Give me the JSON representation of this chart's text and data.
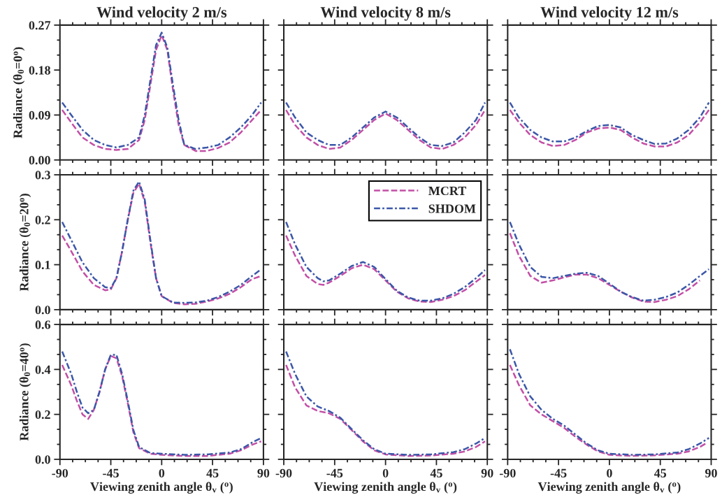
{
  "chart_data": [
    {
      "type": "line",
      "title": "Wind velocity 2 m/s",
      "ylabel": "Radiance (θ$_{0}$=0$^{o}$)",
      "xlim": [
        -90,
        90
      ],
      "xticks": [
        -90,
        -45,
        0,
        45,
        90
      ],
      "ylim": [
        0,
        0.27
      ],
      "yticks": [
        {
          "value": 0,
          "label": "0.00"
        },
        {
          "value": 0.09,
          "label": "0.09"
        },
        {
          "value": 0.18,
          "label": "0.18"
        },
        {
          "value": 0.27,
          "label": "0.27"
        }
      ],
      "tick_labels": "y",
      "series": [
        {
          "color": "#c24fa6",
          "line_style": "dashed",
          "x": [
            -88,
            -80,
            -70,
            -60,
            -50,
            -40,
            -30,
            -20,
            -15,
            -10,
            -5,
            0,
            5,
            10,
            15,
            20,
            30,
            40,
            50,
            60,
            70,
            80,
            88
          ],
          "values": [
            0.1,
            0.075,
            0.045,
            0.03,
            0.022,
            0.02,
            0.022,
            0.04,
            0.08,
            0.15,
            0.22,
            0.25,
            0.22,
            0.14,
            0.07,
            0.03,
            0.018,
            0.018,
            0.024,
            0.035,
            0.055,
            0.08,
            0.1
          ]
        },
        {
          "color": "#3b57a8",
          "line_style": "dashdot",
          "x": [
            -88,
            -80,
            -70,
            -60,
            -50,
            -40,
            -30,
            -20,
            -15,
            -10,
            -5,
            0,
            5,
            10,
            15,
            20,
            30,
            40,
            50,
            60,
            70,
            80,
            88
          ],
          "values": [
            0.115,
            0.09,
            0.06,
            0.04,
            0.03,
            0.025,
            0.03,
            0.045,
            0.09,
            0.16,
            0.23,
            0.255,
            0.225,
            0.15,
            0.08,
            0.03,
            0.022,
            0.025,
            0.03,
            0.045,
            0.065,
            0.09,
            0.115
          ]
        }
      ]
    },
    {
      "type": "line",
      "title": "Wind velocity 8 m/s",
      "xlim": [
        -90,
        90
      ],
      "xticks": [
        -90,
        -45,
        0,
        45,
        90
      ],
      "ylim": [
        0,
        0.27
      ],
      "yticks": [
        {
          "value": 0,
          "label": null
        },
        {
          "value": 0.09,
          "label": null
        },
        {
          "value": 0.18,
          "label": null
        },
        {
          "value": 0.27,
          "label": null
        }
      ],
      "tick_labels": false,
      "series": [
        {
          "color": "#c24fa6",
          "line_style": "dashed",
          "x": [
            -88,
            -80,
            -70,
            -60,
            -50,
            -40,
            -30,
            -20,
            -10,
            0,
            10,
            20,
            30,
            40,
            50,
            60,
            70,
            80,
            88
          ],
          "values": [
            0.1,
            0.07,
            0.045,
            0.03,
            0.022,
            0.025,
            0.04,
            0.06,
            0.08,
            0.093,
            0.08,
            0.06,
            0.04,
            0.025,
            0.022,
            0.03,
            0.045,
            0.07,
            0.1
          ]
        },
        {
          "color": "#3b57a8",
          "line_style": "dashdot",
          "x": [
            -88,
            -80,
            -70,
            -60,
            -50,
            -40,
            -30,
            -20,
            -10,
            0,
            10,
            20,
            30,
            40,
            50,
            60,
            70,
            80,
            88
          ],
          "values": [
            0.115,
            0.085,
            0.055,
            0.04,
            0.03,
            0.03,
            0.045,
            0.065,
            0.085,
            0.097,
            0.085,
            0.065,
            0.045,
            0.03,
            0.028,
            0.035,
            0.055,
            0.08,
            0.115
          ]
        }
      ]
    },
    {
      "type": "line",
      "title": "Wind velocity 12 m/s",
      "xlim": [
        -90,
        90
      ],
      "xticks": [
        -90,
        -45,
        0,
        45,
        90
      ],
      "ylim": [
        0,
        0.27
      ],
      "yticks": [
        {
          "value": 0,
          "label": null
        },
        {
          "value": 0.09,
          "label": null
        },
        {
          "value": 0.18,
          "label": null
        },
        {
          "value": 0.27,
          "label": null
        }
      ],
      "tick_labels": false,
      "series": [
        {
          "color": "#c24fa6",
          "line_style": "dashed",
          "x": [
            -88,
            -80,
            -70,
            -60,
            -50,
            -40,
            -30,
            -20,
            -10,
            0,
            10,
            20,
            30,
            40,
            50,
            60,
            70,
            80,
            88
          ],
          "values": [
            0.1,
            0.075,
            0.05,
            0.035,
            0.028,
            0.03,
            0.04,
            0.055,
            0.063,
            0.065,
            0.06,
            0.045,
            0.033,
            0.027,
            0.027,
            0.035,
            0.05,
            0.075,
            0.1
          ]
        },
        {
          "color": "#3b57a8",
          "line_style": "dashdot",
          "x": [
            -88,
            -80,
            -70,
            -60,
            -50,
            -40,
            -30,
            -20,
            -10,
            0,
            10,
            20,
            30,
            40,
            50,
            60,
            70,
            80,
            88
          ],
          "values": [
            0.115,
            0.085,
            0.06,
            0.045,
            0.037,
            0.037,
            0.045,
            0.058,
            0.068,
            0.07,
            0.065,
            0.05,
            0.04,
            0.032,
            0.033,
            0.043,
            0.06,
            0.085,
            0.115
          ]
        }
      ]
    },
    {
      "type": "line",
      "ylabel": "Radiance (θ$_{0}$=20$^{o}$)",
      "xlim": [
        -90,
        90
      ],
      "xticks": [
        -90,
        -45,
        0,
        45,
        90
      ],
      "ylim": [
        0,
        0.3
      ],
      "yticks": [
        {
          "value": 0,
          "label": "0.0"
        },
        {
          "value": 0.1,
          "label": "0.1"
        },
        {
          "value": 0.2,
          "label": "0.2"
        },
        {
          "value": 0.3,
          "label": "0.3"
        }
      ],
      "tick_labels": "y",
      "series": [
        {
          "color": "#c24fa6",
          "line_style": "dashed",
          "x": [
            -88,
            -80,
            -70,
            -60,
            -50,
            -45,
            -40,
            -35,
            -30,
            -25,
            -20,
            -15,
            -10,
            -5,
            0,
            10,
            20,
            30,
            40,
            50,
            60,
            70,
            80,
            88
          ],
          "values": [
            0.165,
            0.13,
            0.085,
            0.055,
            0.043,
            0.045,
            0.07,
            0.13,
            0.2,
            0.26,
            0.28,
            0.24,
            0.15,
            0.07,
            0.03,
            0.015,
            0.012,
            0.013,
            0.018,
            0.025,
            0.035,
            0.05,
            0.068,
            0.075
          ]
        },
        {
          "color": "#3b57a8",
          "line_style": "dashdot",
          "x": [
            -88,
            -80,
            -70,
            -60,
            -50,
            -45,
            -40,
            -35,
            -30,
            -25,
            -20,
            -15,
            -10,
            -5,
            0,
            10,
            20,
            30,
            40,
            50,
            60,
            70,
            80,
            88
          ],
          "values": [
            0.195,
            0.155,
            0.105,
            0.07,
            0.05,
            0.048,
            0.07,
            0.13,
            0.2,
            0.265,
            0.285,
            0.245,
            0.155,
            0.07,
            0.03,
            0.016,
            0.015,
            0.016,
            0.02,
            0.028,
            0.04,
            0.055,
            0.075,
            0.09
          ]
        }
      ]
    },
    {
      "type": "line",
      "xlim": [
        -90,
        90
      ],
      "xticks": [
        -90,
        -45,
        0,
        45,
        90
      ],
      "ylim": [
        0,
        0.3
      ],
      "yticks": [
        {
          "value": 0,
          "label": null
        },
        {
          "value": 0.1,
          "label": null
        },
        {
          "value": 0.2,
          "label": null
        },
        {
          "value": 0.3,
          "label": null
        }
      ],
      "tick_labels": false,
      "legend": "top right",
      "series": [
        {
          "name": "MCRT",
          "color": "#c24fa6",
          "line_style": "dashed",
          "x": [
            -88,
            -80,
            -70,
            -60,
            -55,
            -50,
            -40,
            -30,
            -20,
            -10,
            0,
            10,
            20,
            30,
            40,
            50,
            60,
            70,
            80,
            88
          ],
          "values": [
            0.165,
            0.12,
            0.075,
            0.057,
            0.055,
            0.06,
            0.075,
            0.092,
            0.1,
            0.09,
            0.065,
            0.04,
            0.025,
            0.018,
            0.017,
            0.022,
            0.03,
            0.043,
            0.062,
            0.077
          ]
        },
        {
          "name": "SHDOM",
          "color": "#3b57a8",
          "line_style": "dashdot",
          "x": [
            -88,
            -80,
            -70,
            -60,
            -55,
            -50,
            -40,
            -30,
            -20,
            -10,
            0,
            10,
            20,
            30,
            40,
            50,
            60,
            70,
            80,
            88
          ],
          "values": [
            0.195,
            0.145,
            0.095,
            0.07,
            0.063,
            0.065,
            0.08,
            0.097,
            0.106,
            0.095,
            0.068,
            0.042,
            0.027,
            0.02,
            0.02,
            0.025,
            0.035,
            0.05,
            0.07,
            0.088
          ]
        }
      ]
    },
    {
      "type": "line",
      "xlim": [
        -90,
        90
      ],
      "xticks": [
        -90,
        -45,
        0,
        45,
        90
      ],
      "ylim": [
        0,
        0.3
      ],
      "yticks": [
        {
          "value": 0,
          "label": null
        },
        {
          "value": 0.1,
          "label": null
        },
        {
          "value": 0.2,
          "label": null
        },
        {
          "value": 0.3,
          "label": null
        }
      ],
      "tick_labels": false,
      "series": [
        {
          "color": "#c24fa6",
          "line_style": "dashed",
          "x": [
            -88,
            -80,
            -70,
            -60,
            -50,
            -40,
            -30,
            -20,
            -10,
            0,
            10,
            20,
            30,
            40,
            50,
            60,
            70,
            80
          ],
          "values": [
            0.17,
            0.12,
            0.075,
            0.06,
            0.065,
            0.072,
            0.078,
            0.078,
            0.07,
            0.055,
            0.04,
            0.027,
            0.018,
            0.017,
            0.022,
            0.03,
            0.045,
            0.065
          ]
        },
        {
          "color": "#3b57a8",
          "line_style": "dashdot",
          "x": [
            -88,
            -80,
            -70,
            -60,
            -50,
            -40,
            -30,
            -20,
            -10,
            0,
            10,
            20,
            30,
            40,
            50,
            60,
            70,
            80,
            88
          ],
          "values": [
            0.195,
            0.145,
            0.095,
            0.073,
            0.07,
            0.075,
            0.08,
            0.082,
            0.075,
            0.058,
            0.04,
            0.028,
            0.02,
            0.022,
            0.028,
            0.038,
            0.055,
            0.075,
            0.09
          ]
        }
      ]
    },
    {
      "type": "line",
      "ylabel": "Radiance (θ$_{0}$=40$^{o}$)",
      "xlabel": "Viewing zenith angle θ$_{v}$ ($^{o}$)",
      "xlim": [
        -90,
        90
      ],
      "xticks": [
        -90,
        -45,
        0,
        45,
        90
      ],
      "ylim": [
        0,
        0.6
      ],
      "yticks": [
        {
          "value": 0,
          "label": "0.0"
        },
        {
          "value": 0.2,
          "label": "0.2"
        },
        {
          "value": 0.4,
          "label": "0.4"
        },
        {
          "value": 0.6,
          "label": "0.6"
        }
      ],
      "series": [
        {
          "color": "#c24fa6",
          "line_style": "dashed",
          "x": [
            -88,
            -80,
            -75,
            -70,
            -65,
            -60,
            -55,
            -50,
            -45,
            -40,
            -35,
            -30,
            -25,
            -20,
            -10,
            0,
            20,
            40,
            60,
            70,
            80,
            88
          ],
          "values": [
            0.42,
            0.33,
            0.26,
            0.2,
            0.18,
            0.22,
            0.3,
            0.4,
            0.46,
            0.45,
            0.37,
            0.25,
            0.12,
            0.05,
            0.025,
            0.02,
            0.015,
            0.015,
            0.025,
            0.04,
            0.065,
            0.08
          ]
        },
        {
          "color": "#3b57a8",
          "line_style": "dashdot",
          "x": [
            -88,
            -80,
            -75,
            -70,
            -65,
            -60,
            -55,
            -50,
            -45,
            -40,
            -35,
            -30,
            -25,
            -20,
            -10,
            0,
            20,
            40,
            60,
            70,
            80,
            88
          ],
          "values": [
            0.48,
            0.38,
            0.3,
            0.23,
            0.205,
            0.22,
            0.3,
            0.4,
            0.465,
            0.465,
            0.38,
            0.26,
            0.13,
            0.055,
            0.028,
            0.025,
            0.02,
            0.022,
            0.03,
            0.045,
            0.075,
            0.095
          ]
        }
      ]
    },
    {
      "type": "line",
      "xlabel": "Viewing zenith angle θ$_{v}$ ($^{o}$)",
      "xlim": [
        -90,
        90
      ],
      "xticks": [
        -90,
        -45,
        0,
        45,
        90
      ],
      "ylim": [
        0,
        0.6
      ],
      "yticks": [
        {
          "value": 0,
          "label": null
        },
        {
          "value": 0.2,
          "label": null
        },
        {
          "value": 0.4,
          "label": null
        },
        {
          "value": 0.6,
          "label": null
        }
      ],
      "tick_labels": "x",
      "series": [
        {
          "color": "#c24fa6",
          "line_style": "dashed",
          "x": [
            -88,
            -80,
            -70,
            -60,
            -50,
            -40,
            -30,
            -20,
            -10,
            0,
            20,
            40,
            60,
            70,
            80,
            88
          ],
          "values": [
            0.42,
            0.32,
            0.24,
            0.215,
            0.205,
            0.18,
            0.13,
            0.08,
            0.04,
            0.022,
            0.015,
            0.017,
            0.025,
            0.035,
            0.055,
            0.08
          ]
        },
        {
          "color": "#3b57a8",
          "line_style": "dashdot",
          "x": [
            -88,
            -80,
            -70,
            -60,
            -50,
            -40,
            -30,
            -20,
            -10,
            0,
            20,
            40,
            60,
            70,
            80,
            88
          ],
          "values": [
            0.48,
            0.38,
            0.28,
            0.235,
            0.215,
            0.185,
            0.135,
            0.085,
            0.045,
            0.025,
            0.02,
            0.022,
            0.032,
            0.045,
            0.07,
            0.095
          ]
        }
      ]
    },
    {
      "type": "line",
      "xlabel": "Viewing zenith angle θ$_{v}$ ($^{o}$)",
      "xlim": [
        -90,
        90
      ],
      "xticks": [
        -90,
        -45,
        0,
        45,
        90
      ],
      "ylim": [
        0,
        0.6
      ],
      "yticks": [
        {
          "value": 0,
          "label": null
        },
        {
          "value": 0.2,
          "label": null
        },
        {
          "value": 0.4,
          "label": null
        },
        {
          "value": 0.6,
          "label": null
        }
      ],
      "tick_labels": "x",
      "series": [
        {
          "color": "#c24fa6",
          "line_style": "dashed",
          "x": [
            -88,
            -80,
            -70,
            -60,
            -50,
            -40,
            -30,
            -20,
            -10,
            0,
            20,
            40,
            60,
            70,
            80,
            85
          ],
          "values": [
            0.42,
            0.33,
            0.24,
            0.2,
            0.17,
            0.14,
            0.1,
            0.065,
            0.035,
            0.02,
            0.015,
            0.018,
            0.025,
            0.035,
            0.055,
            0.07
          ]
        },
        {
          "color": "#3b57a8",
          "line_style": "dashdot",
          "x": [
            -88,
            -80,
            -70,
            -60,
            -50,
            -40,
            -30,
            -20,
            -10,
            0,
            20,
            40,
            60,
            70,
            80,
            88
          ],
          "values": [
            0.49,
            0.38,
            0.28,
            0.22,
            0.18,
            0.15,
            0.11,
            0.07,
            0.04,
            0.025,
            0.02,
            0.022,
            0.03,
            0.045,
            0.07,
            0.095
          ]
        }
      ]
    }
  ]
}
